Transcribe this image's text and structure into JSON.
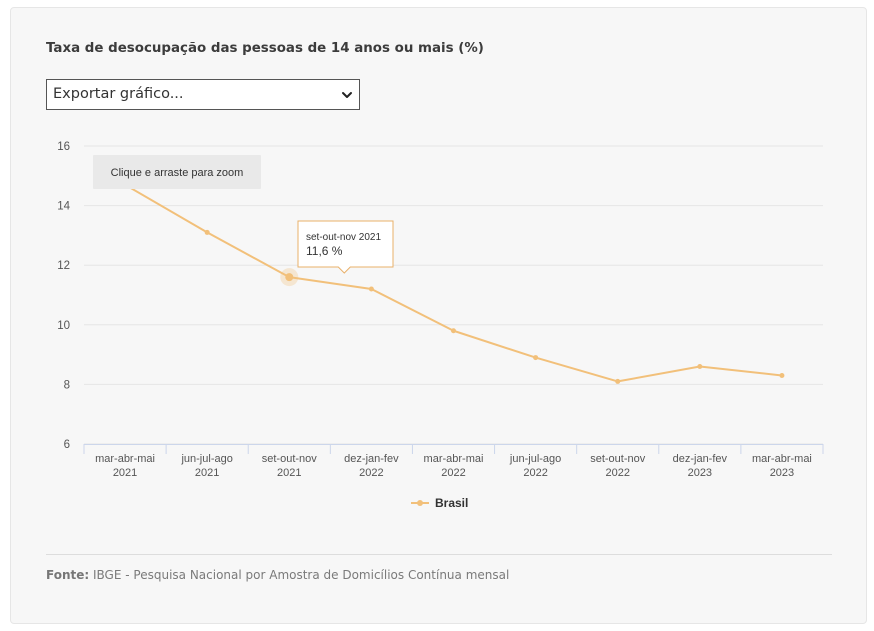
{
  "title": "Taxa de desocupação das pessoas de 14 anos ou mais (%)",
  "export_select": {
    "selected": "Exportar gráfico..."
  },
  "zoom_hint": "Clique e arraste para zoom",
  "tooltip": {
    "period": "set-out-nov 2021",
    "value": "11,6 %"
  },
  "legend": {
    "label": "Brasil"
  },
  "source": {
    "label": "Fonte:",
    "text": "IBGE - Pesquisa Nacional por Amostra de Domicílios Contínua mensal"
  },
  "colors": {
    "series": "#f2c07a",
    "grid": "#e6e6e6",
    "tooltip_border": "#e8b06a"
  },
  "chart_data": {
    "type": "line",
    "title": "Taxa de desocupação das pessoas de 14 anos ou mais (%)",
    "categories": [
      [
        "mar-abr-mai",
        "2021"
      ],
      [
        "jun-jul-ago",
        "2021"
      ],
      [
        "set-out-nov",
        "2021"
      ],
      [
        "dez-jan-fev",
        "2022"
      ],
      [
        "mar-abr-mai",
        "2022"
      ],
      [
        "jun-jul-ago",
        "2022"
      ],
      [
        "set-out-nov",
        "2022"
      ],
      [
        "dez-jan-fev",
        "2023"
      ],
      [
        "mar-abr-mai",
        "2023"
      ]
    ],
    "series": [
      {
        "name": "Brasil",
        "values": [
          14.7,
          13.1,
          11.6,
          11.2,
          9.8,
          8.9,
          8.1,
          8.6,
          8.3
        ]
      }
    ],
    "highlight_index": 2,
    "yticks": [
      6,
      8,
      10,
      12,
      14,
      16
    ],
    "ylim": [
      6,
      16
    ],
    "xlabel": "",
    "ylabel": "",
    "legend_position": "bottom-center"
  }
}
